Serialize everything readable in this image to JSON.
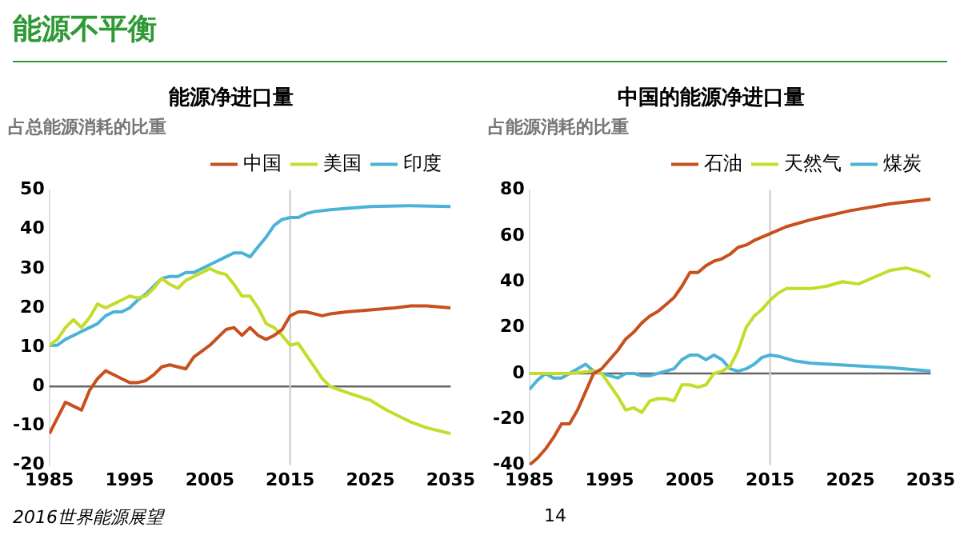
{
  "chart_data": [
    {
      "type": "line",
      "title": "能源净进口量",
      "subtitle": "占总能源消耗的比重",
      "annotations": [
        "能源不平衡",
        "2016世界能源展望"
      ],
      "xlim": [
        1985,
        2035
      ],
      "xticks": [
        1985,
        1995,
        2005,
        2015,
        2025,
        2035
      ],
      "ylim": [
        -20,
        50
      ],
      "yticks": [
        -20,
        -10,
        0,
        10,
        20,
        30,
        40,
        50
      ],
      "grid": false,
      "legend": "top right",
      "marker": "none",
      "line_style": "solid",
      "ref_lines": [
        {
          "axis": "y",
          "value": 0,
          "label": null,
          "color": "#666666"
        },
        {
          "axis": "x",
          "value": 2015,
          "label": null,
          "color": "#d0d0d0"
        }
      ],
      "series": [
        {
          "name": "中国",
          "color": "#c8501e",
          "x": [
            1985,
            1986,
            1987,
            1988,
            1989,
            1990,
            1991,
            1992,
            1993,
            1994,
            1995,
            1996,
            1997,
            1998,
            1999,
            2000,
            2001,
            2002,
            2003,
            2004,
            2005,
            2006,
            2007,
            2008,
            2009,
            2010,
            2011,
            2012,
            2013,
            2014,
            2015,
            2016,
            2017,
            2018,
            2019,
            2020,
            2022,
            2025,
            2028,
            2030,
            2032,
            2035
          ],
          "values": [
            -12,
            -8,
            -4,
            -5,
            -6,
            -1,
            2,
            4,
            3,
            2,
            1,
            1,
            1.5,
            3,
            5,
            5.5,
            5,
            4.5,
            7.5,
            9,
            10.5,
            12.5,
            14.5,
            15,
            13,
            15,
            13,
            12,
            13,
            14.5,
            18,
            19,
            19,
            18.5,
            18,
            18.5,
            19,
            19.5,
            20,
            20.5,
            20.5,
            20
          ]
        },
        {
          "name": "美国",
          "color": "#c5dc2a",
          "x": [
            1985,
            1986,
            1987,
            1988,
            1989,
            1990,
            1991,
            1992,
            1993,
            1994,
            1995,
            1996,
            1997,
            1998,
            1999,
            2000,
            2001,
            2002,
            2003,
            2004,
            2005,
            2006,
            2007,
            2008,
            2009,
            2010,
            2011,
            2012,
            2013,
            2014,
            2015,
            2016,
            2017,
            2018,
            2019,
            2020,
            2022,
            2025,
            2027,
            2030,
            2032,
            2035
          ],
          "values": [
            10.5,
            12,
            15,
            17,
            15,
            17.5,
            21,
            20,
            21,
            22,
            23,
            22.5,
            23,
            25,
            27.5,
            26,
            25,
            27,
            28,
            29,
            30,
            29,
            28.5,
            26,
            23,
            23,
            20,
            16,
            15,
            13,
            10.5,
            11,
            8,
            5,
            2,
            0,
            -1.5,
            -3.5,
            -6,
            -9,
            -10.5,
            -12
          ]
        },
        {
          "name": "印度",
          "color": "#4bb3d6",
          "x": [
            1985,
            1986,
            1987,
            1988,
            1989,
            1990,
            1991,
            1992,
            1993,
            1994,
            1995,
            1996,
            1997,
            1998,
            1999,
            2000,
            2001,
            2002,
            2003,
            2004,
            2005,
            2006,
            2007,
            2008,
            2009,
            2010,
            2011,
            2012,
            2013,
            2014,
            2015,
            2016,
            2017,
            2018,
            2020,
            2025,
            2030,
            2035
          ],
          "values": [
            10.5,
            10.5,
            12,
            13,
            14,
            15,
            16,
            18,
            19,
            19,
            20,
            22,
            23.5,
            25.5,
            27.5,
            28,
            28,
            29,
            29,
            30,
            31,
            32,
            33,
            34,
            34,
            33,
            35.5,
            38,
            41,
            42.5,
            43,
            43,
            44,
            44.5,
            45,
            45.8,
            46,
            45.8
          ]
        }
      ]
    },
    {
      "type": "line",
      "title": "中国的能源净进口量",
      "subtitle": "占能源消耗的比重",
      "annotations": [
        "14"
      ],
      "xlim": [
        1985,
        2035
      ],
      "xticks": [
        1985,
        1995,
        2005,
        2015,
        2025,
        2035
      ],
      "ylim": [
        -40,
        80
      ],
      "yticks": [
        -40,
        -20,
        0,
        20,
        40,
        60,
        80
      ],
      "grid": false,
      "legend": "top right",
      "marker": "none",
      "line_style": "solid",
      "ref_lines": [
        {
          "axis": "y",
          "value": 0,
          "label": null,
          "color": "#666666"
        },
        {
          "axis": "x",
          "value": 2015,
          "label": null,
          "color": "#d0d0d0"
        }
      ],
      "series": [
        {
          "name": "石油",
          "color": "#c8501e",
          "x": [
            1985,
            1986,
            1987,
            1988,
            1989,
            1990,
            1991,
            1992,
            1993,
            1994,
            1995,
            1996,
            1997,
            1998,
            1999,
            2000,
            2001,
            2002,
            2003,
            2004,
            2005,
            2006,
            2007,
            2008,
            2009,
            2010,
            2011,
            2012,
            2013,
            2015,
            2017,
            2020,
            2025,
            2030,
            2035
          ],
          "values": [
            -40,
            -37,
            -33,
            -28,
            -22,
            -22,
            -16,
            -8,
            0,
            2,
            6,
            10,
            15,
            18,
            22,
            25,
            27,
            30,
            33,
            38,
            44,
            44,
            47,
            49,
            50,
            52,
            55,
            56,
            58,
            61,
            64,
            67,
            71,
            74,
            76
          ]
        },
        {
          "name": "天然气",
          "color": "#c5dc2a",
          "x": [
            1985,
            1990,
            1993,
            1994,
            1995,
            1996,
            1997,
            1998,
            1999,
            2000,
            2001,
            2002,
            2003,
            2004,
            2005,
            2006,
            2007,
            2008,
            2009,
            2010,
            2011,
            2012,
            2013,
            2014,
            2015,
            2016,
            2017,
            2018,
            2020,
            2022,
            2024,
            2026,
            2028,
            2030,
            2032,
            2034,
            2035
          ],
          "values": [
            0,
            0,
            1,
            0,
            -5,
            -10,
            -16,
            -15,
            -17,
            -12,
            -11,
            -11,
            -12,
            -5,
            -5,
            -6,
            -5,
            0,
            1,
            3,
            10,
            20,
            25,
            28,
            32,
            35,
            37,
            37,
            37,
            38,
            40,
            39,
            42,
            45,
            46,
            44,
            42
          ]
        },
        {
          "name": "煤炭",
          "color": "#4bb3d6",
          "x": [
            1985,
            1986,
            1987,
            1988,
            1989,
            1990,
            1991,
            1992,
            1993,
            1994,
            1995,
            1996,
            1997,
            1998,
            1999,
            2000,
            2001,
            2002,
            2003,
            2004,
            2005,
            2006,
            2007,
            2008,
            2009,
            2010,
            2011,
            2012,
            2013,
            2014,
            2015,
            2016,
            2018,
            2020,
            2025,
            2030,
            2035
          ],
          "values": [
            -7,
            -3,
            0,
            -2,
            -2,
            0,
            2,
            4,
            1,
            0,
            -1,
            -2,
            0,
            0,
            -1,
            -1,
            0,
            1,
            2,
            6,
            8,
            8,
            6,
            8,
            6,
            2,
            1,
            2,
            4,
            7,
            8,
            7.5,
            5.5,
            4.5,
            3.5,
            2.5,
            1
          ]
        }
      ]
    }
  ]
}
